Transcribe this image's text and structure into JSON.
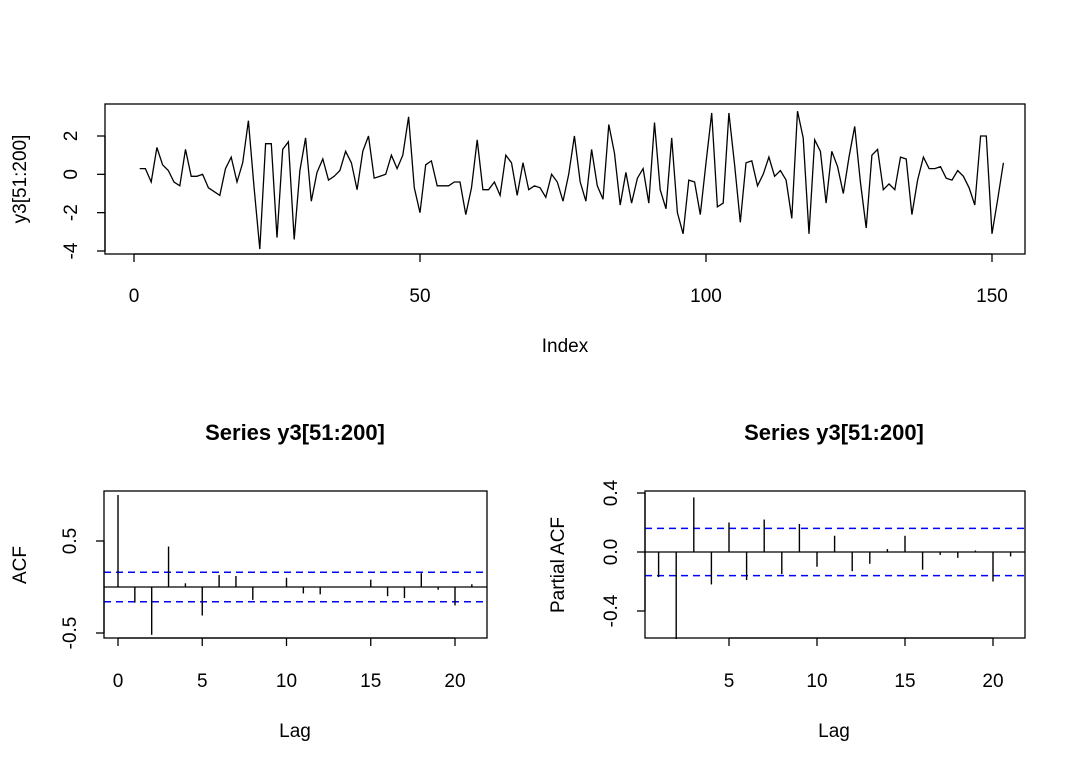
{
  "chart_data": [
    {
      "type": "line",
      "ylabel": "y3[51:200]",
      "xlabel": "Index",
      "xlim": [
        0,
        150
      ],
      "ylim": [
        -4,
        3.3
      ],
      "xticks": [
        0,
        50,
        100,
        150
      ],
      "yticks": [
        -4,
        -2,
        0,
        2
      ],
      "x_start": 1,
      "values": [
        0.3,
        0.3,
        -0.4,
        1.4,
        0.5,
        0.2,
        -0.4,
        -0.6,
        1.3,
        -0.1,
        -0.1,
        0.0,
        -0.7,
        -0.9,
        -1.1,
        0.3,
        0.9,
        -0.4,
        0.6,
        2.8,
        -0.7,
        -3.9,
        1.6,
        1.6,
        -3.3,
        1.3,
        1.7,
        -3.4,
        0.2,
        1.9,
        -1.4,
        0.1,
        0.8,
        -0.3,
        -0.1,
        0.2,
        1.2,
        0.6,
        -0.8,
        1.2,
        2.0,
        -0.2,
        -0.1,
        0.0,
        1.0,
        0.3,
        1.0,
        3.0,
        -0.7,
        -2.0,
        0.5,
        0.7,
        -0.6,
        -0.6,
        -0.6,
        -0.4,
        -0.4,
        -2.1,
        -0.7,
        1.8,
        -0.8,
        -0.8,
        -0.4,
        -1.1,
        1.0,
        0.6,
        -1.1,
        0.6,
        -0.8,
        -0.6,
        -0.7,
        -1.2,
        0.0,
        -0.4,
        -1.4,
        0.0,
        2.0,
        -0.4,
        -1.4,
        1.3,
        -0.6,
        -1.3,
        2.6,
        1.1,
        -1.6,
        0.1,
        -1.5,
        -0.2,
        0.3,
        -1.5,
        2.7,
        -0.8,
        -1.8,
        1.9,
        -2.0,
        -3.1,
        -0.3,
        -0.4,
        -2.1,
        0.6,
        3.2,
        -1.7,
        -1.5,
        3.2,
        0.5,
        -2.5,
        0.6,
        0.7,
        -0.6,
        0.0,
        0.9,
        -0.1,
        0.2,
        -0.3,
        -2.3,
        3.3,
        1.9,
        -3.1,
        1.8,
        1.2,
        -1.5,
        1.2,
        0.4,
        -1.0,
        0.9,
        2.5,
        -0.4,
        -2.8,
        1.0,
        1.3,
        -0.8,
        -0.5,
        -0.8,
        0.9,
        0.8,
        -2.1,
        -0.3,
        0.9,
        0.3,
        0.3,
        0.4,
        -0.2,
        -0.3,
        0.2,
        -0.1,
        -0.7,
        -1.6,
        2.0,
        2.0,
        -3.1,
        -1.3,
        0.6
      ]
    },
    {
      "type": "bar",
      "title": "Series  y3[51:200]",
      "xlabel": "Lag",
      "ylabel": "ACF",
      "xlim": [
        0,
        21.5
      ],
      "ylim": [
        -0.55,
        1.05
      ],
      "xticks": [
        0,
        5,
        10,
        15,
        20
      ],
      "yticks": [
        -0.5,
        0.5
      ],
      "ci": 0.16,
      "ci_color": "#0000ff",
      "lags": [
        0,
        1,
        2,
        3,
        4,
        5,
        6,
        7,
        8,
        9,
        10,
        11,
        12,
        13,
        14,
        15,
        16,
        17,
        18,
        19,
        20,
        21
      ],
      "values": [
        1.0,
        -0.17,
        -0.52,
        0.44,
        0.04,
        -0.31,
        0.13,
        0.12,
        -0.14,
        0.0,
        0.1,
        -0.07,
        -0.08,
        0.0,
        0.0,
        0.08,
        -0.1,
        -0.12,
        0.15,
        -0.03,
        -0.2,
        0.03
      ]
    },
    {
      "type": "bar",
      "title": "Series  y3[51:200]",
      "xlabel": "Lag",
      "ylabel": "Partial ACF",
      "xlim": [
        0.5,
        21.5
      ],
      "ylim": [
        -0.62,
        0.42
      ],
      "xticks": [
        5,
        10,
        15,
        20
      ],
      "yticks": [
        -0.4,
        0.0,
        0.4
      ],
      "ytick_labels": [
        "-0.4",
        "0.0",
        "0.4"
      ],
      "ci": 0.16,
      "ci_color": "#0000ff",
      "lags": [
        1,
        2,
        3,
        4,
        5,
        6,
        7,
        8,
        9,
        10,
        11,
        12,
        13,
        14,
        15,
        16,
        17,
        18,
        19,
        20,
        21
      ],
      "values": [
        -0.17,
        -0.59,
        0.37,
        -0.22,
        0.2,
        -0.19,
        0.22,
        -0.15,
        0.19,
        -0.1,
        0.11,
        -0.13,
        -0.08,
        0.02,
        0.11,
        -0.12,
        -0.02,
        -0.04,
        0.01,
        -0.2,
        -0.03
      ]
    }
  ]
}
